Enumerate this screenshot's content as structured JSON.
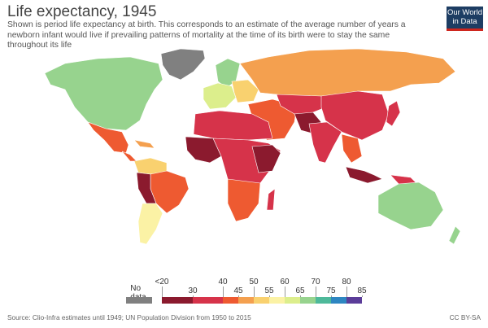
{
  "header": {
    "title": "Life expectancy, 1945",
    "subtitle": "Shown is period life expectancy at birth. This corresponds to an estimate of the average number of years a newborn infant would live if prevailing patterns of mortality at the time of its birth were to stay the same throughout its life",
    "logo": "Our World in Data"
  },
  "legend": {
    "no_data_label": "No data",
    "no_data_color": "#808080",
    "bins": [
      {
        "from": "<20",
        "to": "30",
        "color": "#8b1a2e"
      },
      {
        "from": "30",
        "to": "40",
        "color": "#d6334a"
      },
      {
        "from": "40",
        "to": "45",
        "color": "#ee5a31"
      },
      {
        "from": "45",
        "to": "50",
        "color": "#f4a04f"
      },
      {
        "from": "50",
        "to": "55",
        "color": "#f9d16f"
      },
      {
        "from": "55",
        "to": "60",
        "color": "#fbf2a5"
      },
      {
        "from": "60",
        "to": "65",
        "color": "#dcee8c"
      },
      {
        "from": "65",
        "to": "70",
        "color": "#97d38e"
      },
      {
        "from": "70",
        "to": "75",
        "color": "#4eb99a"
      },
      {
        "from": "75",
        "to": "80",
        "color": "#2e86c1"
      },
      {
        "from": "80",
        "to": "85",
        "color": "#5b3d99"
      }
    ]
  },
  "footer": {
    "source": "Source: Clio-Infra estimates until 1949; UN Population Division from 1950 to 2015",
    "license": "CC BY-SA"
  }
}
